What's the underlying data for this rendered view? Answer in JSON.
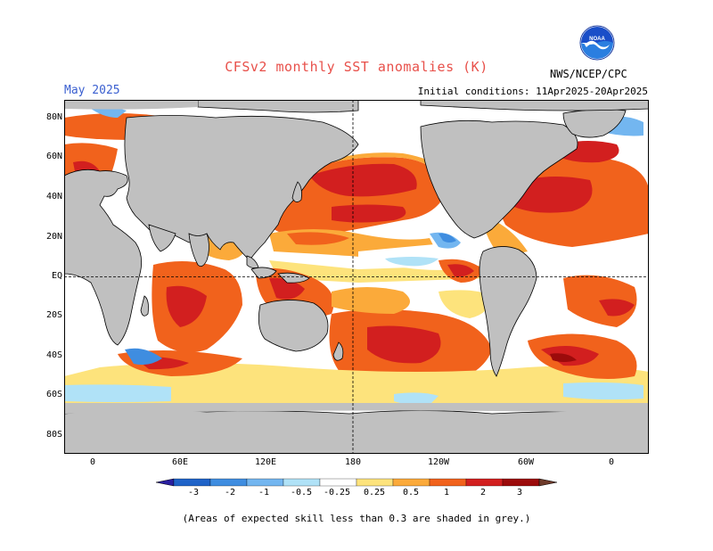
{
  "title": "CFSv2 monthly SST anomalies (K)",
  "forecast_month": "May 2025",
  "initial_conditions": "Initial conditions: 11Apr2025-20Apr2025",
  "agency": "NWS/NCEP/CPC",
  "logo_text": "NOAA",
  "footnote": "(Areas of expected skill less than 0.3 are shaded in grey.)",
  "lat_labels": [
    "80N",
    "60N",
    "40N",
    "20N",
    "EQ",
    "20S",
    "40S",
    "60S",
    "80S"
  ],
  "lon_labels": [
    "0",
    "60E",
    "120E",
    "180",
    "120W",
    "60W",
    "0"
  ],
  "colorbar": {
    "labels": [
      "-3",
      "-2",
      "-1",
      "-0.5",
      "-0.25",
      "0.25",
      "0.5",
      "1",
      "2",
      "3"
    ],
    "colors": [
      "#2a1fa0",
      "#1f63c8",
      "#3f8de0",
      "#73b6f0",
      "#b0e2f7",
      "#ffffff",
      "#fde37c",
      "#fbaa3a",
      "#f1621c",
      "#d21f1f",
      "#9c0b0b",
      "#6e3a2a"
    ]
  },
  "colors": {
    "land": "#c0c0c0",
    "ocean": "#ffffff",
    "title": "#e8504a",
    "month": "#3a5fd0"
  }
}
